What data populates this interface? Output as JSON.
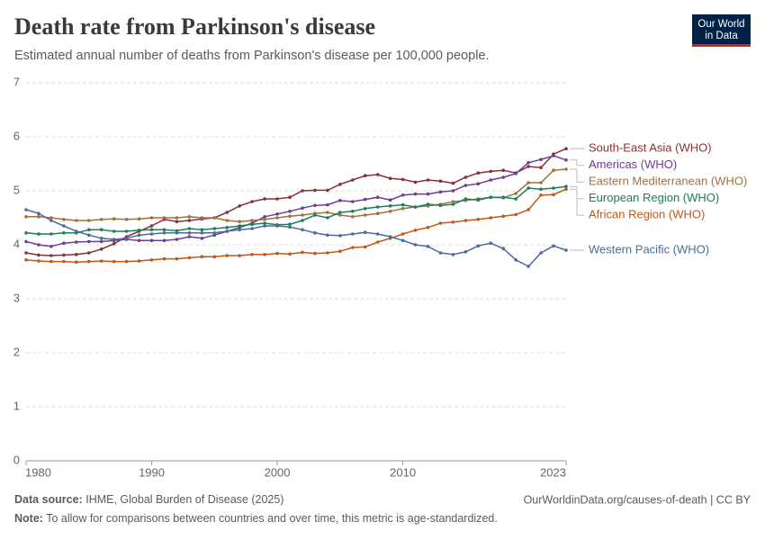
{
  "title": "Death rate from Parkinson's disease",
  "subtitle": "Estimated annual number of deaths from Parkinson's disease per 100,000 people.",
  "logo": [
    "Our World",
    "in Data"
  ],
  "footer": {
    "source_label": "Data source:",
    "source": "IHME, Global Burden of Disease (2025)",
    "url": "OurWorldinData.org/causes-of-death | CC BY",
    "note_label": "Note:",
    "note": "To allow for comparisons between countries and over time, this metric is age-standardized."
  },
  "chart_data": {
    "type": "line",
    "x": [
      1980,
      1981,
      1982,
      1983,
      1984,
      1985,
      1986,
      1987,
      1988,
      1989,
      1990,
      1991,
      1992,
      1993,
      1994,
      1995,
      1996,
      1997,
      1998,
      1999,
      2000,
      2001,
      2002,
      2003,
      2004,
      2005,
      2006,
      2007,
      2008,
      2009,
      2010,
      2011,
      2012,
      2013,
      2014,
      2015,
      2016,
      2017,
      2018,
      2019,
      2020,
      2021,
      2022,
      2023
    ],
    "xlim": [
      1980,
      2023
    ],
    "xticks": [
      1980,
      1990,
      2000,
      2010,
      2023
    ],
    "ylim": [
      0,
      7
    ],
    "yticks": [
      0,
      1,
      2,
      3,
      4,
      5,
      6,
      7
    ],
    "grid": true,
    "series": [
      {
        "name": "South-East Asia (WHO)",
        "color": "#883039",
        "values": [
          3.85,
          3.81,
          3.8,
          3.81,
          3.82,
          3.85,
          3.92,
          4.02,
          4.15,
          4.25,
          4.35,
          4.47,
          4.43,
          4.45,
          4.48,
          4.5,
          4.6,
          4.72,
          4.8,
          4.85,
          4.85,
          4.88,
          5.0,
          5.01,
          5.01,
          5.12,
          5.2,
          5.28,
          5.3,
          5.23,
          5.21,
          5.16,
          5.2,
          5.18,
          5.14,
          5.25,
          5.33,
          5.36,
          5.38,
          5.33,
          5.45,
          5.43,
          5.68,
          5.78
        ]
      },
      {
        "name": "Americas (WHO)",
        "color": "#6d3e91",
        "values": [
          4.06,
          4.0,
          3.97,
          4.03,
          4.05,
          4.06,
          4.06,
          4.08,
          4.1,
          4.08,
          4.08,
          4.08,
          4.1,
          4.15,
          4.12,
          4.18,
          4.25,
          4.32,
          4.4,
          4.52,
          4.57,
          4.62,
          4.68,
          4.73,
          4.74,
          4.82,
          4.8,
          4.84,
          4.88,
          4.83,
          4.92,
          4.94,
          4.94,
          4.98,
          5.0,
          5.1,
          5.13,
          5.2,
          5.25,
          5.32,
          5.52,
          5.58,
          5.65,
          5.57
        ]
      },
      {
        "name": "Eastern Mediterranean (WHO)",
        "color": "#a2703d",
        "values": [
          4.52,
          4.52,
          4.5,
          4.47,
          4.45,
          4.45,
          4.47,
          4.48,
          4.47,
          4.48,
          4.5,
          4.5,
          4.5,
          4.52,
          4.5,
          4.5,
          4.45,
          4.43,
          4.45,
          4.47,
          4.5,
          4.53,
          4.55,
          4.58,
          4.6,
          4.55,
          4.52,
          4.55,
          4.58,
          4.62,
          4.67,
          4.7,
          4.72,
          4.75,
          4.8,
          4.82,
          4.85,
          4.88,
          4.87,
          4.95,
          5.15,
          5.15,
          5.38,
          5.4
        ]
      },
      {
        "name": "European Region (WHO)",
        "color": "#18805c",
        "values": [
          4.22,
          4.2,
          4.2,
          4.22,
          4.22,
          4.28,
          4.28,
          4.25,
          4.25,
          4.27,
          4.28,
          4.28,
          4.26,
          4.3,
          4.28,
          4.3,
          4.32,
          4.35,
          4.38,
          4.4,
          4.37,
          4.38,
          4.45,
          4.55,
          4.5,
          4.6,
          4.62,
          4.67,
          4.7,
          4.72,
          4.74,
          4.7,
          4.75,
          4.73,
          4.75,
          4.85,
          4.83,
          4.88,
          4.88,
          4.85,
          5.05,
          5.03,
          5.05,
          5.08
        ]
      },
      {
        "name": "African Region (WHO)",
        "color": "#c05917",
        "values": [
          3.72,
          3.7,
          3.69,
          3.69,
          3.68,
          3.69,
          3.7,
          3.69,
          3.69,
          3.7,
          3.72,
          3.74,
          3.74,
          3.76,
          3.78,
          3.78,
          3.8,
          3.8,
          3.82,
          3.82,
          3.84,
          3.83,
          3.86,
          3.84,
          3.85,
          3.88,
          3.95,
          3.96,
          4.05,
          4.12,
          4.2,
          4.27,
          4.32,
          4.4,
          4.42,
          4.45,
          4.47,
          4.5,
          4.53,
          4.56,
          4.65,
          4.92,
          4.93,
          5.03
        ]
      },
      {
        "name": "Western Pacific (WHO)",
        "color": "#4c6a9c",
        "values": [
          4.65,
          4.58,
          4.45,
          4.35,
          4.25,
          4.18,
          4.12,
          4.1,
          4.12,
          4.18,
          4.2,
          4.22,
          4.22,
          4.22,
          4.22,
          4.22,
          4.25,
          4.28,
          4.3,
          4.35,
          4.35,
          4.33,
          4.28,
          4.22,
          4.18,
          4.17,
          4.2,
          4.23,
          4.2,
          4.15,
          4.08,
          4.0,
          3.97,
          3.85,
          3.82,
          3.87,
          3.98,
          4.03,
          3.93,
          3.72,
          3.6,
          3.85,
          3.98,
          3.9
        ]
      }
    ]
  }
}
